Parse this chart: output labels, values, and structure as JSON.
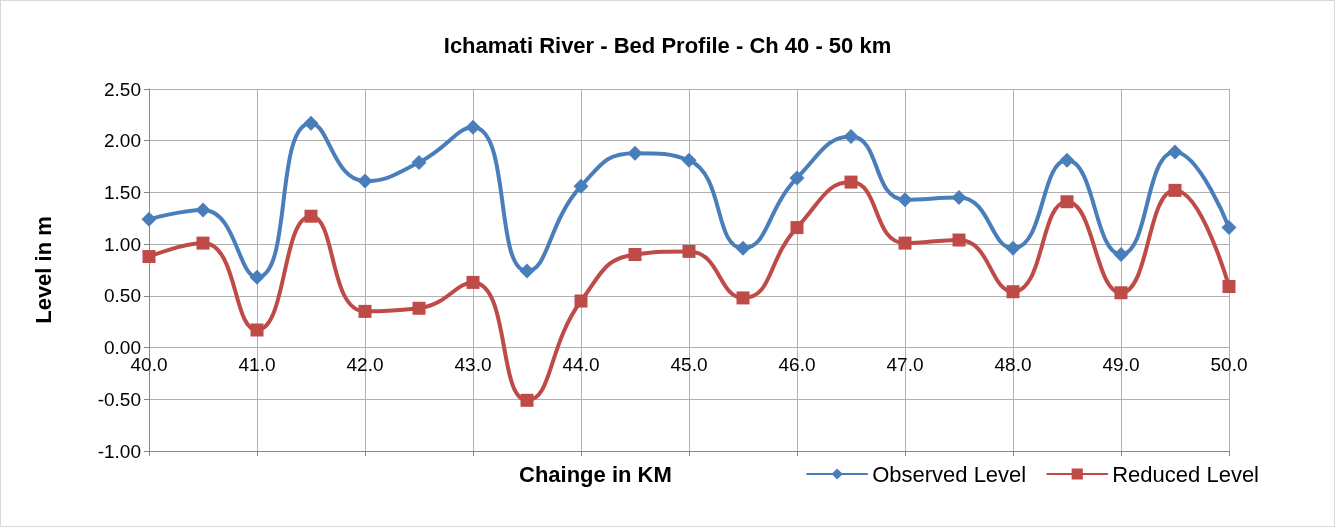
{
  "chart_data": {
    "type": "line",
    "title": "Ichamati River - Bed Profile - Ch 40 - 50 km",
    "xlabel": "Chainge in KM",
    "ylabel": "Level in m",
    "x": [
      40,
      40.5,
      41,
      41.5,
      42,
      42.5,
      43,
      43.5,
      44,
      44.5,
      45,
      45.5,
      46,
      46.5,
      47,
      47.5,
      48,
      48.5,
      49,
      49.5,
      50
    ],
    "series": [
      {
        "name": "Observed Level",
        "color": "#4a7ebb",
        "marker": "diamond",
        "values": [
          1.24,
          1.33,
          0.68,
          2.17,
          1.61,
          1.79,
          2.13,
          0.74,
          1.56,
          1.88,
          1.81,
          0.96,
          1.64,
          2.04,
          1.43,
          1.45,
          0.96,
          1.81,
          0.9,
          1.89,
          1.16
        ]
      },
      {
        "name": "Reduced Level",
        "color": "#be4b48",
        "marker": "square",
        "values": [
          0.88,
          1.01,
          0.17,
          1.27,
          0.35,
          0.38,
          0.63,
          -0.51,
          0.45,
          0.9,
          0.93,
          0.48,
          1.16,
          1.6,
          1.01,
          1.04,
          0.54,
          1.41,
          0.53,
          1.52,
          0.59
        ]
      }
    ],
    "xlim": [
      40,
      50
    ],
    "xticks": [
      {
        "value": 40,
        "label": "40.0"
      },
      {
        "value": 41,
        "label": "41.0"
      },
      {
        "value": 42,
        "label": "42.0"
      },
      {
        "value": 43,
        "label": "43.0"
      },
      {
        "value": 44,
        "label": "44.0"
      },
      {
        "value": 45,
        "label": "45.0"
      },
      {
        "value": 46,
        "label": "46.0"
      },
      {
        "value": 47,
        "label": "47.0"
      },
      {
        "value": 48,
        "label": "48.0"
      },
      {
        "value": 49,
        "label": "49.0"
      },
      {
        "value": 50,
        "label": "50.0"
      }
    ],
    "ylim": [
      -1,
      2.5
    ],
    "yticks": [
      {
        "value": -1,
        "label": "-1.00"
      },
      {
        "value": -0.5,
        "label": "-0.50"
      },
      {
        "value": 0,
        "label": "0.00"
      },
      {
        "value": 0.5,
        "label": "0.50"
      },
      {
        "value": 1,
        "label": "1.00"
      },
      {
        "value": 1.5,
        "label": "1.50"
      },
      {
        "value": 2,
        "label": "2.00"
      },
      {
        "value": 2.5,
        "label": "2.50"
      }
    ],
    "grid": true,
    "legend": "bottom right",
    "line_style": "solid"
  }
}
